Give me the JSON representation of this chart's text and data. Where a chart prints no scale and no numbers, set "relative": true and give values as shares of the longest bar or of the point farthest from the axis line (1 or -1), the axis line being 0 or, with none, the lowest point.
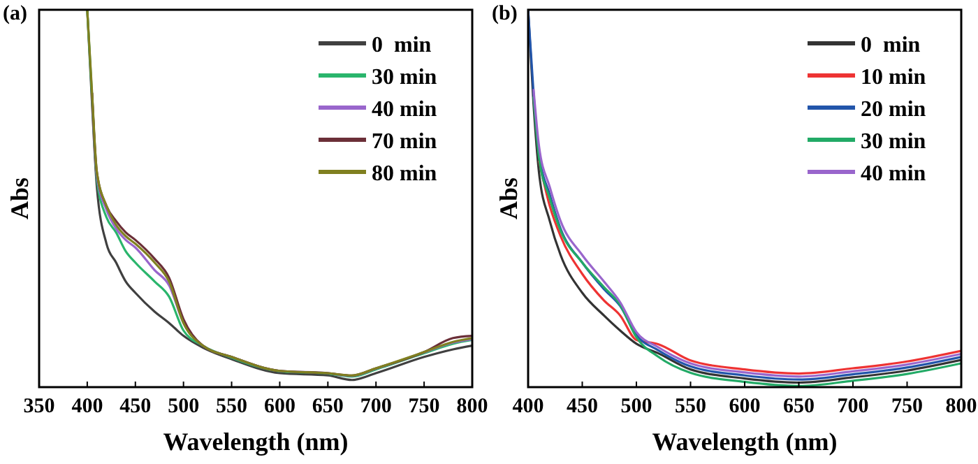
{
  "chart_data": [
    {
      "type": "line",
      "title": "(a)",
      "xlabel": "Wavelength (nm)",
      "ylabel": "Abs",
      "relative": true,
      "xlim": [
        350,
        800
      ],
      "xticks": [
        350,
        400,
        450,
        500,
        550,
        600,
        650,
        700,
        750,
        800
      ],
      "legend": "top right",
      "grid": false,
      "line_style": "solid",
      "x": [
        400,
        405,
        410,
        420,
        430,
        440,
        450,
        470,
        485,
        500,
        520,
        550,
        600,
        650,
        675,
        700,
        750,
        780,
        800
      ],
      "series": [
        {
          "name": "0  min",
          "color": "#404040",
          "values": [
            1.0,
            0.75,
            0.53,
            0.38,
            0.33,
            0.28,
            0.25,
            0.2,
            0.17,
            0.136,
            0.105,
            0.074,
            0.037,
            0.031,
            0.019,
            0.037,
            0.08,
            0.1,
            0.11
          ]
        },
        {
          "name": "30 min",
          "color": "#2ab56c",
          "values": [
            1.0,
            0.77,
            0.55,
            0.45,
            0.41,
            0.36,
            0.33,
            0.28,
            0.24,
            0.15,
            0.11,
            0.078,
            0.042,
            0.036,
            0.028,
            0.047,
            0.09,
            0.115,
            0.125
          ]
        },
        {
          "name": "40 min",
          "color": "#9966cc",
          "values": [
            null,
            0.78,
            0.56,
            0.47,
            0.42,
            0.39,
            0.37,
            0.31,
            0.27,
            0.17,
            0.11,
            0.08,
            0.043,
            0.037,
            0.03,
            0.049,
            0.092,
            0.118,
            0.127
          ]
        },
        {
          "name": "70 min",
          "color": "#6b2f38",
          "values": [
            null,
            0.78,
            0.57,
            0.48,
            0.44,
            0.41,
            0.39,
            0.34,
            0.29,
            0.18,
            0.11,
            0.08,
            0.043,
            0.037,
            0.031,
            0.05,
            0.093,
            0.13,
            0.136
          ]
        },
        {
          "name": "80 min",
          "color": "#808020",
          "values": [
            1.0,
            0.78,
            0.57,
            0.48,
            0.43,
            0.4,
            0.38,
            0.33,
            0.28,
            0.17,
            0.11,
            0.08,
            0.043,
            0.037,
            0.031,
            0.05,
            0.093,
            0.12,
            0.13
          ]
        }
      ]
    },
    {
      "type": "line",
      "title": "(b)",
      "xlabel": "Wavelength (nm)",
      "ylabel": "Abs",
      "relative": true,
      "xlim": [
        400,
        800
      ],
      "xticks": [
        400,
        450,
        500,
        550,
        600,
        650,
        700,
        750,
        800
      ],
      "legend": "top right",
      "grid": false,
      "line_style": "solid",
      "x": [
        400,
        405,
        410,
        420,
        430,
        450,
        470,
        485,
        500,
        520,
        550,
        600,
        650,
        700,
        750,
        800
      ],
      "series": [
        {
          "name": "0  min",
          "color": "#333333",
          "values": [
            1.0,
            0.75,
            0.57,
            0.44,
            0.35,
            0.25,
            0.19,
            0.15,
            0.115,
            0.09,
            0.047,
            0.023,
            0.012,
            0.026,
            0.044,
            0.072
          ]
        },
        {
          "name": "10 min",
          "color": "#ee3333",
          "values": [
            null,
            null,
            0.6,
            0.48,
            0.4,
            0.3,
            0.23,
            0.19,
            0.125,
            0.114,
            0.071,
            0.047,
            0.036,
            0.05,
            0.068,
            0.096
          ]
        },
        {
          "name": "20 min",
          "color": "#2255aa",
          "values": [
            1.0,
            0.78,
            0.62,
            0.51,
            0.42,
            0.33,
            0.26,
            0.215,
            0.138,
            0.098,
            0.055,
            0.031,
            0.02,
            0.034,
            0.052,
            0.08
          ]
        },
        {
          "name": "30 min",
          "color": "#22aa66",
          "values": [
            null,
            0.77,
            0.61,
            0.5,
            0.415,
            0.33,
            0.265,
            0.218,
            0.132,
            0.081,
            0.038,
            0.014,
            0.003,
            0.017,
            0.035,
            0.063
          ]
        },
        {
          "name": "40 min",
          "color": "#9966cc",
          "values": [
            null,
            0.79,
            0.64,
            0.53,
            0.44,
            0.35,
            0.28,
            0.225,
            0.146,
            0.106,
            0.063,
            0.039,
            0.028,
            0.042,
            0.06,
            0.088
          ]
        }
      ]
    }
  ]
}
